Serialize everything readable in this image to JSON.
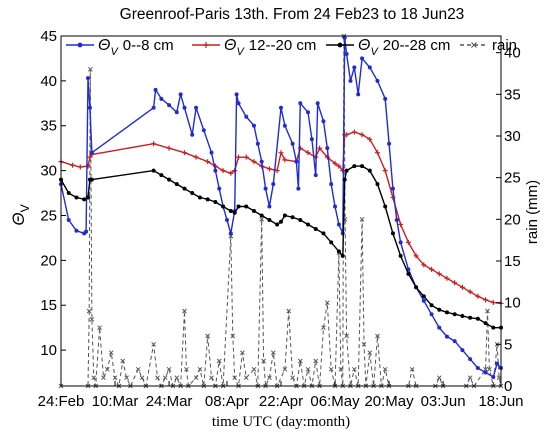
{
  "chart_data": {
    "type": "line",
    "title": "Greenroof-Paris 13th. From 24 Feb23 to 18 Jun23",
    "xlabel": "time UTC (day:month)",
    "ylabel_left": "Θ",
    "ylabel_left_sub": "V",
    "ylabel_right": "rain (mm)",
    "xlim": [
      0,
      114
    ],
    "ylim_left": [
      6,
      45
    ],
    "ylim_right": [
      0,
      42
    ],
    "x_ticks": [
      {
        "x": 0,
        "label": "24:Feb"
      },
      {
        "x": 14,
        "label": "10:Mar"
      },
      {
        "x": 28,
        "label": "24:Mar"
      },
      {
        "x": 43,
        "label": "08:Apr"
      },
      {
        "x": 57,
        "label": "22:Apr"
      },
      {
        "x": 71,
        "label": "06:May"
      },
      {
        "x": 85,
        "label": "20:May"
      },
      {
        "x": 99,
        "label": "03:Jun"
      },
      {
        "x": 114,
        "label": "18:Jun"
      }
    ],
    "y_ticks_left": [
      10,
      15,
      20,
      25,
      30,
      35,
      40,
      45
    ],
    "y_ticks_right": [
      0,
      5,
      10,
      15,
      20,
      25,
      30,
      35,
      40
    ],
    "legend": {
      "placement": "top",
      "symbol": "Θ",
      "symbol_sub": "V"
    },
    "series": [
      {
        "name": "0--8 cm",
        "axis": "left",
        "color": "#1f2bd8",
        "marker": "dot",
        "points": [
          [
            0,
            28.5
          ],
          [
            2,
            24.5
          ],
          [
            4,
            23.3
          ],
          [
            6,
            23.0
          ],
          [
            6.5,
            23.2
          ],
          [
            7,
            40.3
          ],
          [
            7.5,
            37.0
          ],
          [
            8,
            32.0
          ],
          [
            24,
            37.0
          ],
          [
            24.5,
            39.0
          ],
          [
            26,
            38.0
          ],
          [
            28,
            37.3
          ],
          [
            30,
            36.5
          ],
          [
            31,
            38.5
          ],
          [
            32,
            37.0
          ],
          [
            34,
            34.0
          ],
          [
            35,
            37.0
          ],
          [
            37,
            34.5
          ],
          [
            39,
            32.0
          ],
          [
            40,
            30.0
          ],
          [
            41,
            28.0
          ],
          [
            42,
            26.0
          ],
          [
            43,
            24.5
          ],
          [
            44,
            23.0
          ],
          [
            45,
            25.5
          ],
          [
            45.5,
            38.5
          ],
          [
            46,
            37.5
          ],
          [
            48,
            36.0
          ],
          [
            50,
            35.0
          ],
          [
            51,
            33.0
          ],
          [
            52,
            31.0
          ],
          [
            53,
            28.0
          ],
          [
            54,
            26.0
          ],
          [
            55,
            28.5
          ],
          [
            57,
            37.0
          ],
          [
            58,
            35.0
          ],
          [
            60,
            33.0
          ],
          [
            61,
            31.0
          ],
          [
            61.5,
            28.0
          ],
          [
            62,
            37.5
          ],
          [
            64,
            36.5
          ],
          [
            65,
            33.5
          ],
          [
            66,
            29.5
          ],
          [
            66.5,
            37.5
          ],
          [
            68,
            35.5
          ],
          [
            69,
            32.5
          ],
          [
            70,
            28.5
          ],
          [
            71,
            26.0
          ],
          [
            72,
            24.0
          ],
          [
            73,
            23.0
          ],
          [
            73.5,
            44.8
          ],
          [
            74,
            43.0
          ],
          [
            75,
            40.0
          ],
          [
            76,
            41.5
          ],
          [
            77,
            38.5
          ],
          [
            78,
            42.5
          ],
          [
            80,
            41.5
          ],
          [
            82,
            40.0
          ],
          [
            84,
            38.0
          ],
          [
            85,
            33.0
          ],
          [
            86,
            28.0
          ],
          [
            87,
            24.5
          ],
          [
            88,
            22.0
          ],
          [
            90,
            19.0
          ],
          [
            92,
            17.0
          ],
          [
            94,
            15.5
          ],
          [
            96,
            14.0
          ],
          [
            98,
            12.5
          ],
          [
            100,
            11.5
          ],
          [
            102,
            11.0
          ],
          [
            104,
            10.0
          ],
          [
            106,
            9.0
          ],
          [
            108,
            8.0
          ],
          [
            110,
            7.5
          ],
          [
            112,
            7.0
          ],
          [
            113,
            8.5
          ],
          [
            114,
            8.0
          ]
        ]
      },
      {
        "name": "12--20 cm",
        "axis": "left",
        "color": "#cc1f1f",
        "marker": "plus",
        "points": [
          [
            0,
            31.0
          ],
          [
            3,
            30.6
          ],
          [
            5,
            30.4
          ],
          [
            7,
            30.5
          ],
          [
            7.5,
            31.5
          ],
          [
            8,
            31.8
          ],
          [
            24,
            33.0
          ],
          [
            28,
            32.5
          ],
          [
            32,
            32.0
          ],
          [
            35,
            31.5
          ],
          [
            38,
            31.0
          ],
          [
            40,
            30.5
          ],
          [
            42,
            30.0
          ],
          [
            44,
            29.7
          ],
          [
            45,
            30.0
          ],
          [
            46,
            31.5
          ],
          [
            48,
            31.5
          ],
          [
            50,
            31.0
          ],
          [
            52,
            30.5
          ],
          [
            54,
            30.2
          ],
          [
            56,
            30.0
          ],
          [
            57,
            32.0
          ],
          [
            58,
            31.2
          ],
          [
            61,
            31.0
          ],
          [
            62,
            32.5
          ],
          [
            64,
            32.0
          ],
          [
            66,
            31.5
          ],
          [
            67,
            32.5
          ],
          [
            69,
            31.5
          ],
          [
            71,
            30.8
          ],
          [
            72,
            30.5
          ],
          [
            73,
            30.0
          ],
          [
            73.5,
            34.0
          ],
          [
            74,
            34.0
          ],
          [
            76,
            34.3
          ],
          [
            78,
            34.0
          ],
          [
            80,
            33.5
          ],
          [
            82,
            32.0
          ],
          [
            84,
            30.0
          ],
          [
            86,
            27.0
          ],
          [
            88,
            24.0
          ],
          [
            90,
            22.0
          ],
          [
            92,
            20.5
          ],
          [
            94,
            19.5
          ],
          [
            96,
            19.0
          ],
          [
            98,
            18.5
          ],
          [
            100,
            18.0
          ],
          [
            102,
            17.5
          ],
          [
            104,
            17.0
          ],
          [
            106,
            16.5
          ],
          [
            108,
            16.0
          ],
          [
            110,
            15.6
          ],
          [
            112,
            15.3
          ],
          [
            114,
            15.2
          ]
        ]
      },
      {
        "name": "20--28 cm",
        "axis": "left",
        "color": "#000000",
        "marker": "dot",
        "points": [
          [
            0,
            29.0
          ],
          [
            2,
            27.5
          ],
          [
            4,
            27.0
          ],
          [
            6,
            26.8
          ],
          [
            7,
            27.0
          ],
          [
            7.5,
            29.0
          ],
          [
            8,
            29.0
          ],
          [
            24,
            30.0
          ],
          [
            26,
            29.5
          ],
          [
            28,
            29.0
          ],
          [
            30,
            28.5
          ],
          [
            32,
            28.0
          ],
          [
            34,
            27.5
          ],
          [
            36,
            27.0
          ],
          [
            38,
            26.8
          ],
          [
            40,
            26.5
          ],
          [
            42,
            26.0
          ],
          [
            44,
            25.5
          ],
          [
            45,
            25.3
          ],
          [
            46,
            26.0
          ],
          [
            48,
            26.0
          ],
          [
            50,
            25.5
          ],
          [
            52,
            25.0
          ],
          [
            54,
            24.5
          ],
          [
            56,
            24.0
          ],
          [
            57,
            24.3
          ],
          [
            58,
            25.0
          ],
          [
            60,
            24.8
          ],
          [
            62,
            24.5
          ],
          [
            64,
            24.0
          ],
          [
            66,
            23.5
          ],
          [
            68,
            23.0
          ],
          [
            70,
            22.0
          ],
          [
            72,
            21.0
          ],
          [
            73,
            20.5
          ],
          [
            73.5,
            29.0
          ],
          [
            74,
            30.0
          ],
          [
            76,
            30.5
          ],
          [
            78,
            30.5
          ],
          [
            80,
            30.0
          ],
          [
            82,
            28.5
          ],
          [
            84,
            26.0
          ],
          [
            86,
            23.0
          ],
          [
            88,
            20.5
          ],
          [
            90,
            18.5
          ],
          [
            92,
            17.0
          ],
          [
            94,
            16.0
          ],
          [
            96,
            15.0
          ],
          [
            98,
            14.5
          ],
          [
            100,
            14.2
          ],
          [
            102,
            14.0
          ],
          [
            104,
            13.8
          ],
          [
            106,
            13.6
          ],
          [
            108,
            13.5
          ],
          [
            110,
            13.0
          ],
          [
            112,
            12.5
          ],
          [
            114,
            12.5
          ]
        ]
      },
      {
        "name": "rain",
        "axis": "right",
        "color": "#555555",
        "marker": "cross",
        "dashed": true,
        "points": [
          [
            0,
            0
          ],
          [
            7,
            0
          ],
          [
            7.3,
            9
          ],
          [
            7.6,
            38
          ],
          [
            8,
            8
          ],
          [
            8.5,
            1
          ],
          [
            9,
            0
          ],
          [
            10,
            7
          ],
          [
            11,
            1
          ],
          [
            12,
            2
          ],
          [
            13,
            4
          ],
          [
            14,
            1
          ],
          [
            15,
            0
          ],
          [
            16,
            3
          ],
          [
            17,
            1
          ],
          [
            18,
            0
          ],
          [
            20,
            2
          ],
          [
            21,
            1
          ],
          [
            22,
            0
          ],
          [
            24,
            5
          ],
          [
            25,
            1
          ],
          [
            26,
            0
          ],
          [
            27,
            1
          ],
          [
            28,
            2
          ],
          [
            29,
            0
          ],
          [
            30,
            1
          ],
          [
            31,
            0
          ],
          [
            32,
            9
          ],
          [
            32.5,
            2
          ],
          [
            33,
            0
          ],
          [
            35,
            1
          ],
          [
            36,
            2
          ],
          [
            37,
            0
          ],
          [
            38,
            6
          ],
          [
            39,
            1
          ],
          [
            40,
            0
          ],
          [
            41,
            3
          ],
          [
            42,
            0
          ],
          [
            44,
            18
          ],
          [
            44.5,
            6
          ],
          [
            45,
            1
          ],
          [
            46,
            0
          ],
          [
            47,
            4
          ],
          [
            48,
            1
          ],
          [
            50,
            2
          ],
          [
            51,
            0
          ],
          [
            52,
            20
          ],
          [
            52.5,
            3
          ],
          [
            53,
            0
          ],
          [
            54,
            1
          ],
          [
            55,
            4
          ],
          [
            56,
            0
          ],
          [
            58,
            2
          ],
          [
            59,
            9
          ],
          [
            60,
            1
          ],
          [
            61,
            0
          ],
          [
            62,
            3
          ],
          [
            63,
            0
          ],
          [
            64,
            2
          ],
          [
            65,
            0
          ],
          [
            66,
            3
          ],
          [
            67,
            0
          ],
          [
            68,
            7
          ],
          [
            69,
            10
          ],
          [
            70,
            2
          ],
          [
            71,
            0
          ],
          [
            72,
            16
          ],
          [
            72.5,
            2
          ],
          [
            73,
            0
          ],
          [
            73.3,
            42
          ],
          [
            73.6,
            20
          ],
          [
            74,
            6
          ],
          [
            75,
            0
          ],
          [
            76,
            2
          ],
          [
            77,
            0
          ],
          [
            78,
            20
          ],
          [
            78.5,
            5
          ],
          [
            79,
            0
          ],
          [
            80,
            4
          ],
          [
            81,
            0
          ],
          [
            82,
            6
          ],
          [
            83,
            0
          ],
          [
            84,
            2
          ],
          [
            85,
            0
          ],
          [
            90,
            0
          ],
          [
            91,
            2
          ],
          [
            92,
            0
          ],
          [
            97,
            0
          ],
          [
            98,
            1
          ],
          [
            99,
            0
          ],
          [
            105,
            0
          ],
          [
            106,
            1
          ],
          [
            107,
            0
          ],
          [
            110,
            2
          ],
          [
            110.5,
            9
          ],
          [
            111,
            2
          ],
          [
            112,
            0
          ],
          [
            113,
            5
          ],
          [
            113.5,
            1
          ],
          [
            114,
            0
          ]
        ]
      }
    ]
  }
}
